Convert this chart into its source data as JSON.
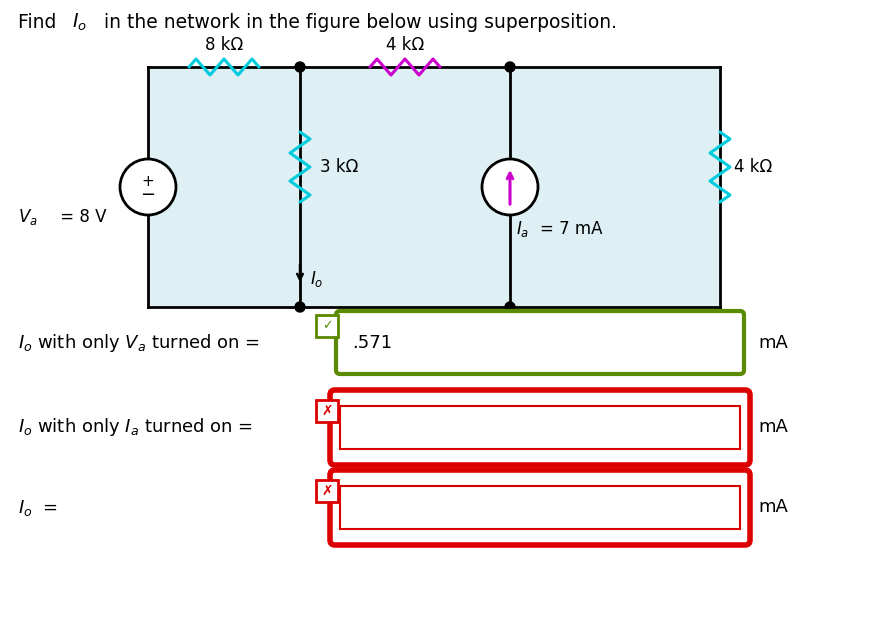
{
  "bg_color": "#ffffff",
  "title_parts": [
    "Find ",
    "I",
    "o",
    " in the network in the figure below using superposition."
  ],
  "circuit": {
    "Va_label": "V",
    "Va_subscript": "a",
    "Va_value": " = 8 V",
    "R1_label": "8 kΩ",
    "R2_label": "3 kΩ",
    "R3_label": "4 kΩ",
    "R4_label": "4 kΩ",
    "Ia_value": "= 7 mA",
    "Io_label": "I",
    "Io_subscript": "o",
    "bg_color": "#dff0f5"
  },
  "answer_boxes": [
    {
      "label_parts": [
        "I",
        "o",
        " with only ",
        "V",
        "a",
        " turned on ="
      ],
      "value": ".571",
      "unit": "mA",
      "correct": true,
      "outer_color": "#5a8a00",
      "inner_color": "#5a8a00"
    },
    {
      "label_parts": [
        "I",
        "o",
        " with only ",
        "I",
        "a",
        " turned on ="
      ],
      "value": "",
      "unit": "mA",
      "correct": false,
      "outer_color": "#dd0000",
      "inner_color": "#dd0000"
    },
    {
      "label_parts": [
        "I",
        "o",
        " ="
      ],
      "value": "",
      "unit": "mA",
      "correct": false,
      "outer_color": "#dd0000",
      "inner_color": "#dd0000"
    }
  ],
  "resistor_cyan": "#00ccdd",
  "resistor_magenta": "#cc00cc",
  "wire_color": "#000000",
  "source_arrow_color": "#cc00cc"
}
